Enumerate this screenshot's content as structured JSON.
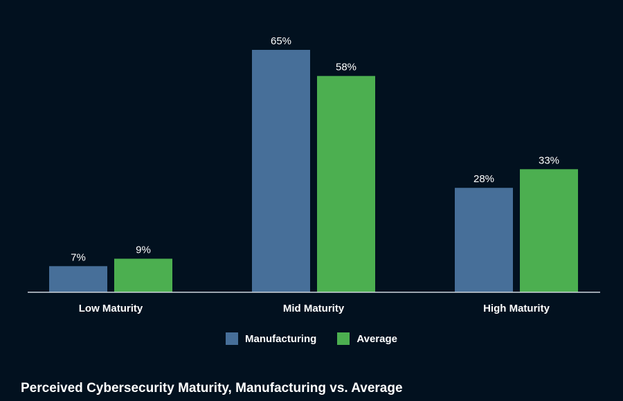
{
  "chart_data": {
    "type": "bar",
    "title": "Perceived Cybersecurity Maturity, Manufacturing vs. Average",
    "categories": [
      "Low Maturity",
      "Mid Maturity",
      "High Maturity"
    ],
    "series": [
      {
        "name": "Manufacturing",
        "values": [
          7,
          65,
          28
        ],
        "labels": [
          "7%",
          "65%",
          "28%"
        ],
        "color": "#476f99"
      },
      {
        "name": "Average",
        "values": [
          9,
          58,
          33
        ],
        "labels": [
          "9%",
          "58%",
          "33%"
        ],
        "color": "#4caf50"
      }
    ],
    "xlabel": "",
    "ylabel": "",
    "ylim": [
      0,
      65
    ],
    "legend_position": "bottom-center"
  },
  "colors": {
    "background": "#02111f",
    "axis": "#cfd6dd",
    "text": "#ffffff"
  }
}
